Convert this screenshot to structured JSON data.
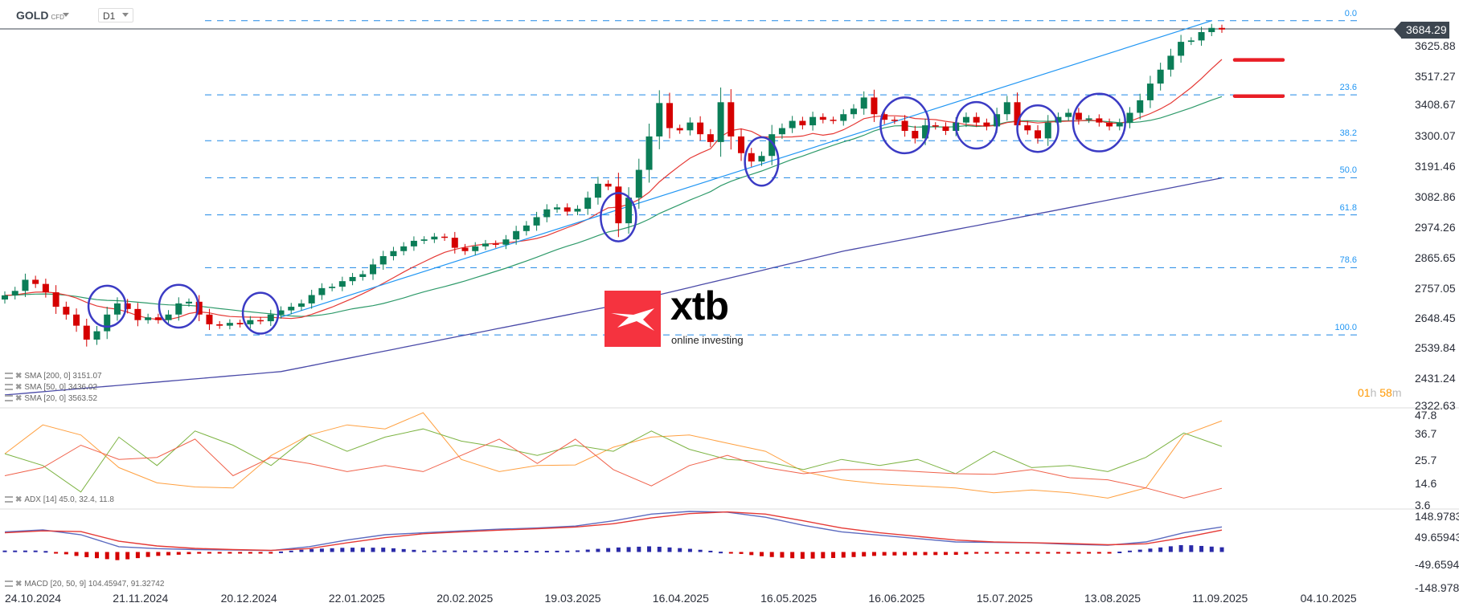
{
  "header": {
    "symbol": "GOLD",
    "symbol_type": "CFD",
    "timeframe": "D1"
  },
  "price_axis": {
    "current_price": "3684.29",
    "labels": [
      "3625.88",
      "3517.27",
      "3408.67",
      "3300.07",
      "3191.46",
      "3082.86",
      "2974.26",
      "2865.65",
      "2757.05",
      "2648.45",
      "2539.84",
      "2431.24",
      "2322.63"
    ]
  },
  "adx_axis": {
    "labels": [
      "47.8",
      "36.7",
      "25.7",
      "14.6",
      "3.6"
    ]
  },
  "macd_axis": {
    "labels": [
      "148.9783",
      "49.65943",
      "-49.6594",
      "-148.978"
    ]
  },
  "date_axis": [
    "24.10.2024",
    "21.11.2024",
    "20.12.2024",
    "22.01.2025",
    "20.02.2025",
    "19.03.2025",
    "16.04.2025",
    "16.05.2025",
    "16.06.2025",
    "15.07.2025",
    "13.08.2025",
    "11.09.2025",
    "04.10.2025"
  ],
  "timer": {
    "hours": "01",
    "h": "h",
    "minutes": "58",
    "m": "m"
  },
  "legends": {
    "sma200": "SMA [200, 0] 3151.07",
    "sma50": "SMA [50, 0] 3436.02",
    "sma20": "SMA [20, 0] 3563.52",
    "adx": "ADX [14] 45.0, 32.4, 11.8",
    "macd": "MACD [20, 50, 9] 104.45947, 91.32742"
  },
  "logo": {
    "brand": "xtb",
    "tagline": "online investing"
  },
  "colors": {
    "up": "#0b7d57",
    "down": "#d50000",
    "sma20": "#e53935",
    "sma50": "#2e9a6a",
    "sma200": "#4a4aa8",
    "fib": "#1e88e5",
    "trend": "#2196f3",
    "circle": "#3b3bc4",
    "marker": "#e91e26",
    "adx": "#ffa040",
    "plus_di": "#7cb342",
    "minus_di": "#f0614a",
    "macd": "#5c6bc0",
    "signal": "#e53935"
  },
  "chart_data": {
    "type": "candlestick",
    "closes": [
      2729,
      2745,
      2785,
      2770,
      2740,
      2688,
      2660,
      2620,
      2570,
      2600,
      2660,
      2700,
      2680,
      2640,
      2650,
      2640,
      2660,
      2700,
      2706,
      2660,
      2625,
      2620,
      2630,
      2625,
      2640,
      2636,
      2660,
      2675,
      2688,
      2700,
      2730,
      2755,
      2760,
      2780,
      2795,
      2805,
      2840,
      2870,
      2888,
      2905,
      2925,
      2930,
      2940,
      2936,
      2900,
      2888,
      2905,
      2915,
      2911,
      2930,
      2960,
      2980,
      3010,
      3038,
      3045,
      3030,
      3040,
      3080,
      3130,
      3120,
      2988,
      3080,
      3180,
      3300,
      3420,
      3330,
      3322,
      3350,
      3308,
      3280,
      3423,
      3300,
      3240,
      3210,
      3230,
      3308,
      3330,
      3356,
      3340,
      3370,
      3360,
      3356,
      3380,
      3400,
      3440,
      3380,
      3360,
      3356,
      3320,
      3293,
      3340,
      3336,
      3320,
      3350,
      3370,
      3350,
      3336,
      3380,
      3423,
      3340,
      3322,
      3293,
      3350,
      3370,
      3385,
      3360,
      3365,
      3350,
      3336,
      3350,
      3385,
      3430,
      3490,
      3540,
      3590,
      3640,
      3645,
      3675,
      3690,
      3684.29
    ],
    "sma200_points": [
      [
        0,
        2371
      ],
      [
        27,
        2455
      ],
      [
        59,
        2688
      ],
      [
        82,
        2888
      ],
      [
        100,
        3015
      ],
      [
        119,
        3151.07
      ]
    ],
    "trendline": [
      [
        27,
        2651
      ],
      [
        118,
        3716
      ]
    ],
    "fib": {
      "high": 3716,
      "low": 2587,
      "levels": [
        "0.0",
        "23.6",
        "38.2",
        "50.0",
        "61.8",
        "78.6",
        "100.0"
      ]
    },
    "support_markers": [
      3575,
      3445
    ],
    "highlight_circles": [
      [
        10,
        2690,
        20,
        22
      ],
      [
        17,
        2690,
        21,
        23
      ],
      [
        25,
        2665,
        19,
        22
      ],
      [
        60,
        3010,
        19,
        26
      ],
      [
        74,
        3210,
        18,
        26
      ],
      [
        88,
        3340,
        26,
        30
      ],
      [
        95,
        3340,
        22,
        25
      ],
      [
        101,
        3328,
        22,
        25
      ],
      [
        107,
        3350,
        28,
        31
      ]
    ],
    "adx": {
      "ylim": [
        3.6,
        47.8
      ],
      "adx": [
        28.8,
        43,
        38,
        22,
        14.5,
        12.5,
        12,
        27.9,
        38,
        43,
        41,
        49,
        26,
        20,
        23,
        23.3,
        32,
        37,
        38,
        34,
        30,
        20,
        16,
        14,
        13,
        12,
        9.6,
        11,
        9.6,
        7,
        12,
        38,
        45
      ],
      "plus_di": [
        28.8,
        23,
        10,
        37,
        23,
        40,
        33,
        23,
        38,
        30,
        37,
        41,
        35,
        32,
        28,
        33,
        30,
        40,
        31,
        26,
        25,
        21,
        26,
        23,
        26,
        19,
        30,
        22,
        23,
        20,
        27,
        39,
        32.4
      ],
      "minus_di": [
        18,
        22,
        33,
        26,
        27,
        36,
        18,
        27,
        24,
        20,
        23,
        20,
        28,
        36,
        24,
        36,
        21,
        13,
        23,
        28,
        22,
        19,
        21,
        21,
        20,
        19,
        18.7,
        21,
        17,
        16,
        12,
        7,
        11.8
      ]
    },
    "macd": {
      "ylim": [
        -148.978,
        148.9783
      ],
      "macd": [
        84,
        92,
        72,
        22,
        14,
        10,
        8,
        6,
        22,
        50,
        72,
        80,
        88,
        95,
        100,
        108,
        130,
        158,
        169,
        166,
        145,
        111,
        84,
        70,
        56,
        42,
        40,
        38,
        32,
        28,
        42,
        80,
        104.46
      ],
      "signal": [
        80,
        88,
        85,
        45,
        25,
        15,
        10,
        7,
        14,
        38,
        60,
        76,
        84,
        91,
        97,
        104,
        118,
        142,
        160,
        167,
        158,
        130,
        100,
        80,
        65,
        50,
        42,
        39,
        35,
        30,
        34,
        60,
        91.33
      ]
    }
  }
}
